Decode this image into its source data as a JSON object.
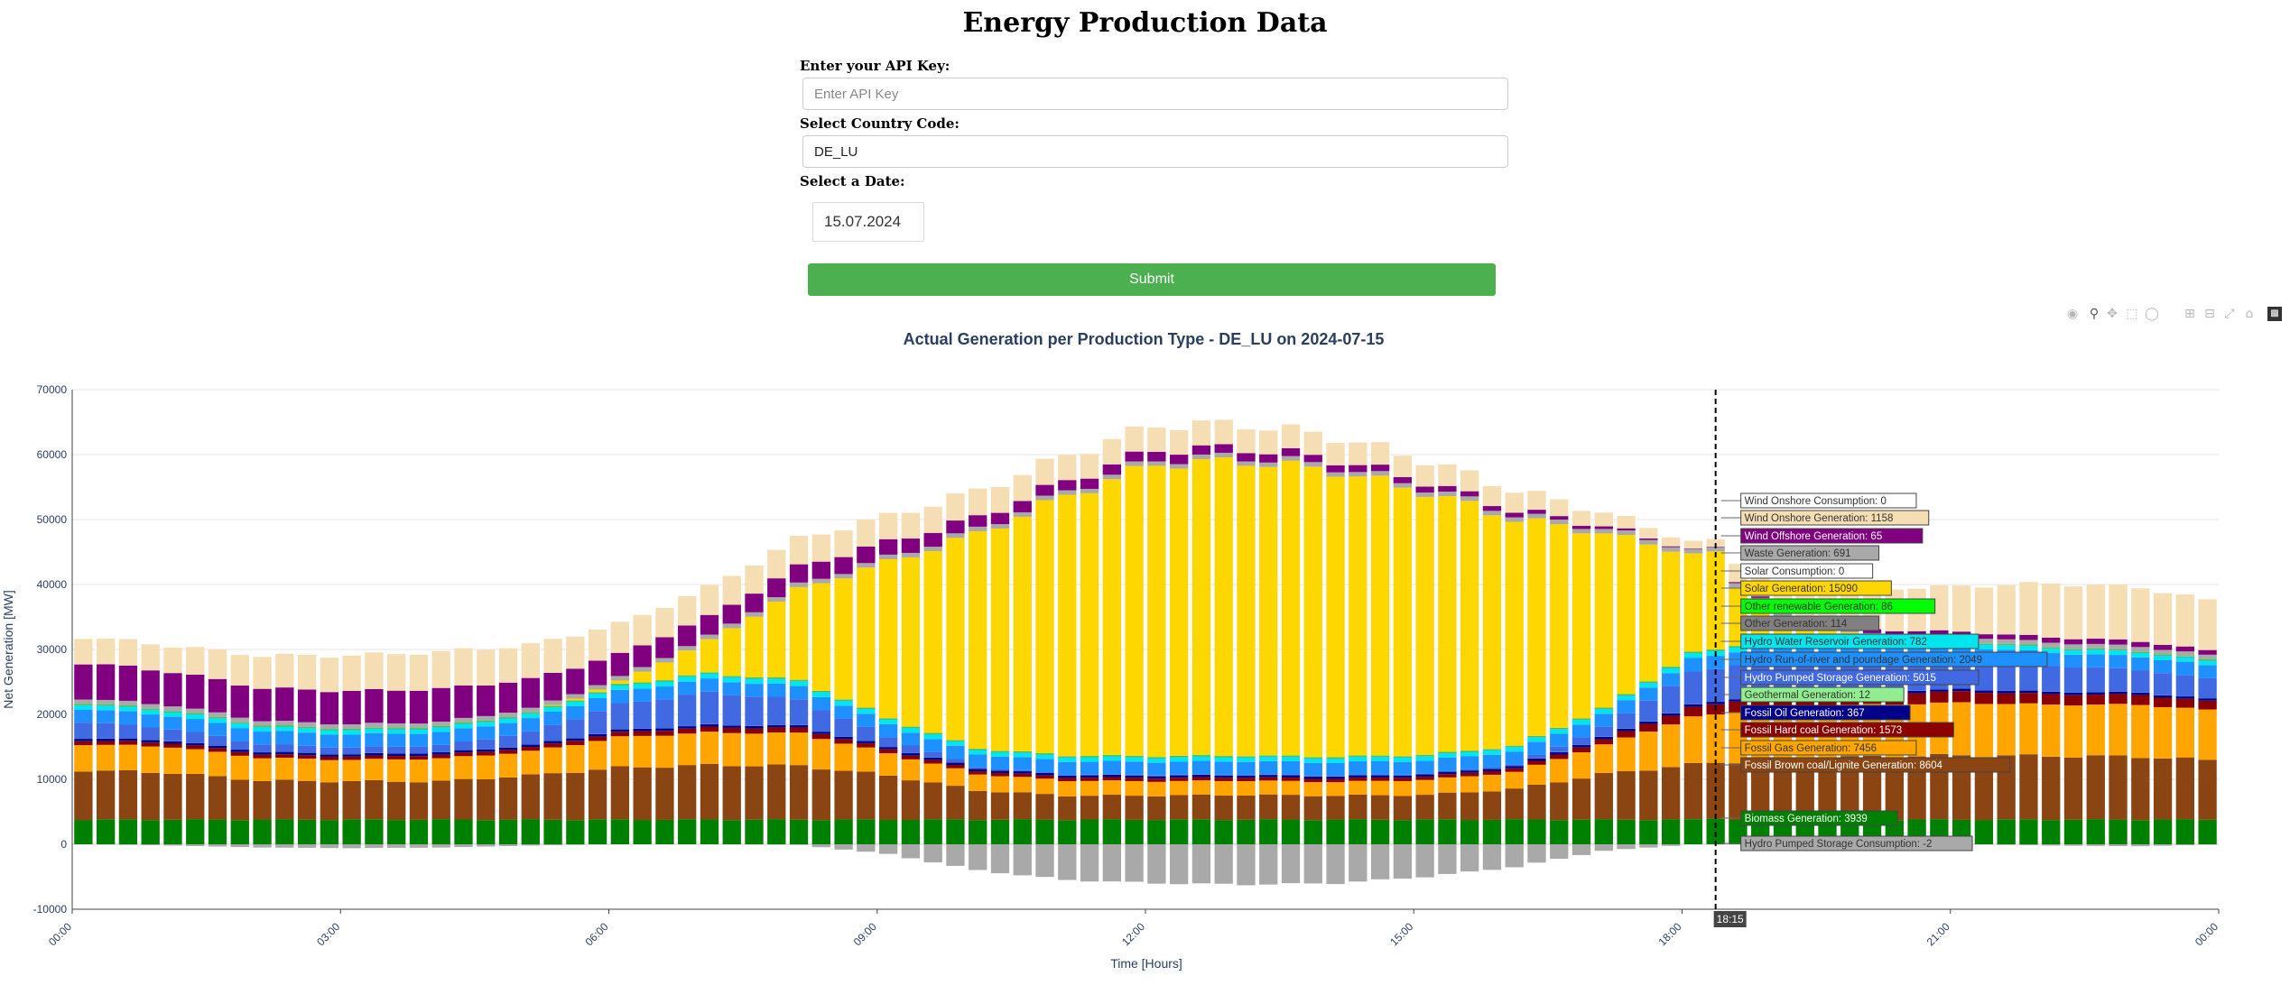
{
  "page": {
    "title": "Energy Production Data"
  },
  "form": {
    "api_key_label": "Enter your API Key:",
    "api_key_placeholder": "Enter API Key",
    "api_key_value": "",
    "country_label": "Select Country Code:",
    "country_value": "DE_LU",
    "date_label": "Select a Date:",
    "date_value": "15.07.2024",
    "submit_label": "Submit"
  },
  "modebar": {
    "icons": [
      "camera-icon",
      "zoom-icon",
      "pan-icon",
      "box-select-icon",
      "lasso-icon",
      "zoom-in-icon",
      "zoom-out-icon",
      "autoscale-icon",
      "reset-axes-icon",
      "plotly-logo-icon"
    ]
  },
  "chart_data": {
    "type": "bar",
    "barmode": "relative",
    "title": "Actual Generation per Production Type - DE_LU on 2024-07-15",
    "xlabel": "Time [Hours]",
    "ylabel": "Net Generation [MW]",
    "ylim": [
      -10000,
      70000
    ],
    "yticks": [
      -10000,
      0,
      10000,
      20000,
      30000,
      40000,
      50000,
      60000,
      70000
    ],
    "xticks": [
      "00:00",
      "03:00",
      "06:00",
      "09:00",
      "12:00",
      "15:00",
      "18:00",
      "21:00",
      "00:00"
    ],
    "grid": true,
    "legend": "hidden",
    "interval_minutes": 15,
    "hover": {
      "time_label": "18:15",
      "interval_index": 73,
      "labels": [
        "Wind Onshore Consumption: 0",
        "Wind Onshore Generation: 1158",
        "Wind Offshore Generation: 65",
        "Waste Generation: 691",
        "Solar Consumption: 0",
        "Solar Generation: 15090",
        "Other renewable Generation: 86",
        "Other Generation: 114",
        "Hydro Water Reservoir Generation: 782",
        "Hydro Run-of-river and poundage Generation: 2049",
        "Hydro Pumped Storage Generation: 5015",
        "Geothermal Generation: 12",
        "Fossil Oil Generation: 367",
        "Fossil Hard coal Generation: 1573",
        "Fossil Gas Generation: 7456",
        "Fossil Brown coal/Lignite Generation: 8604",
        "Biomass Generation: 3939",
        "Hydro Pumped Storage Consumption: -2"
      ]
    },
    "series_hourly": [
      {
        "name": "Biomass Generation",
        "color": "#008000",
        "values": [
          3800,
          3800,
          3800,
          3800,
          3800,
          3800,
          3800,
          3800,
          3800,
          3800,
          3800,
          3800,
          3800,
          3800,
          3800,
          3800,
          3800,
          3800,
          3800,
          3800,
          3800,
          3800,
          3800,
          3800,
          3800
        ]
      },
      {
        "name": "Fossil Brown coal/Lignite Generation",
        "color": "#8b4513",
        "values": [
          7600,
          7200,
          6000,
          5900,
          5900,
          6800,
          8000,
          8400,
          8300,
          6800,
          4500,
          3700,
          3700,
          3800,
          3700,
          3800,
          4700,
          7000,
          8500,
          9300,
          9700,
          9900,
          9800,
          9700,
          9000
        ]
      },
      {
        "name": "Fossil Gas Generation",
        "color": "#ffa500",
        "values": [
          4000,
          4000,
          3500,
          3300,
          3500,
          3700,
          4700,
          5000,
          5000,
          3400,
          2500,
          2300,
          2200,
          2200,
          2100,
          2300,
          2600,
          4500,
          7300,
          8200,
          8000,
          8100,
          7900,
          8000,
          7600
        ]
      },
      {
        "name": "Fossil Hard coal Generation",
        "color": "#8b0000",
        "values": [
          600,
          600,
          550,
          500,
          550,
          600,
          700,
          800,
          800,
          600,
          500,
          500,
          500,
          500,
          500,
          500,
          550,
          800,
          1500,
          1700,
          1700,
          1700,
          1600,
          1500,
          1300
        ]
      },
      {
        "name": "Fossil Oil Generation",
        "color": "#00008b",
        "values": [
          370,
          370,
          370,
          370,
          370,
          370,
          370,
          370,
          370,
          370,
          370,
          370,
          370,
          370,
          370,
          370,
          370,
          370,
          370,
          370,
          370,
          370,
          370,
          370,
          370
        ]
      },
      {
        "name": "Geothermal Generation",
        "color": "#90ee90",
        "values": [
          12,
          12,
          12,
          12,
          12,
          12,
          12,
          12,
          12,
          12,
          12,
          12,
          12,
          12,
          12,
          12,
          12,
          12,
          12,
          12,
          12,
          12,
          12,
          12,
          12
        ]
      },
      {
        "name": "Hydro Pumped Storage Generation",
        "color": "#4169e1",
        "values": [
          2500,
          1800,
          1200,
          1000,
          1100,
          2000,
          4000,
          5000,
          4000,
          1500,
          200,
          100,
          100,
          100,
          100,
          100,
          200,
          1500,
          5000,
          5500,
          5000,
          4500,
          4000,
          3500,
          3000
        ]
      },
      {
        "name": "Hydro Run-of-river and poundage Generation",
        "color": "#1e90ff",
        "values": [
          2000,
          2000,
          2000,
          2000,
          2000,
          2000,
          2000,
          2000,
          2000,
          2000,
          2000,
          2000,
          2000,
          2000,
          2000,
          2000,
          2000,
          2000,
          2049,
          2000,
          2000,
          2000,
          2000,
          2000,
          2000
        ]
      },
      {
        "name": "Hydro Water Reservoir Generation",
        "color": "#00e5ee",
        "values": [
          700,
          700,
          700,
          700,
          700,
          700,
          750,
          780,
          780,
          750,
          700,
          700,
          700,
          700,
          700,
          700,
          700,
          750,
          782,
          780,
          750,
          750,
          700,
          700,
          700
        ]
      },
      {
        "name": "Other Generation",
        "color": "#808080",
        "values": [
          114,
          114,
          114,
          114,
          114,
          114,
          114,
          114,
          114,
          114,
          114,
          114,
          114,
          114,
          114,
          114,
          114,
          114,
          114,
          114,
          114,
          114,
          114,
          114,
          114
        ]
      },
      {
        "name": "Other renewable Generation",
        "color": "#00ff00",
        "values": [
          86,
          86,
          86,
          86,
          86,
          86,
          86,
          86,
          86,
          86,
          86,
          86,
          86,
          86,
          86,
          86,
          86,
          86,
          86,
          86,
          86,
          86,
          86,
          86,
          86
        ]
      },
      {
        "name": "Solar Generation",
        "color": "#ffd700",
        "values": [
          0,
          0,
          0,
          0,
          0,
          0,
          500,
          5000,
          14000,
          24000,
          33000,
          40000,
          45000,
          45300,
          44000,
          40500,
          35000,
          27000,
          15090,
          3000,
          200,
          0,
          0,
          0,
          0
        ]
      },
      {
        "name": "Waste Generation",
        "color": "#a9a9a9",
        "values": [
          691,
          691,
          691,
          691,
          691,
          691,
          691,
          691,
          691,
          691,
          691,
          691,
          691,
          691,
          691,
          691,
          691,
          691,
          691,
          691,
          691,
          691,
          691,
          691,
          691
        ]
      },
      {
        "name": "Wind Offshore Generation",
        "color": "#800080",
        "values": [
          5500,
          5200,
          5000,
          5100,
          5100,
          4500,
          3500,
          3000,
          2800,
          2400,
          1800,
          1600,
          1500,
          1300,
          1100,
          900,
          700,
          400,
          65,
          300,
          600,
          700,
          800,
          800,
          700
        ]
      },
      {
        "name": "Wind Onshore Generation",
        "color": "#f5deb3",
        "values": [
          4000,
          4000,
          5000,
          5500,
          5700,
          5300,
          4700,
          4500,
          4300,
          4000,
          4100,
          3900,
          3800,
          3700,
          3500,
          3300,
          3100,
          2100,
          1158,
          4500,
          6300,
          7000,
          8300,
          8300,
          7500
        ]
      },
      {
        "name": "Hydro Pumped Storage Consumption",
        "color": "#a9a9a9",
        "values": [
          0,
          -200,
          -500,
          -600,
          -500,
          -200,
          0,
          0,
          -100,
          -1500,
          -4000,
          -5500,
          -6000,
          -6200,
          -6000,
          -5000,
          -3500,
          -1000,
          -2,
          0,
          0,
          0,
          -200,
          -300,
          0
        ]
      }
    ]
  }
}
